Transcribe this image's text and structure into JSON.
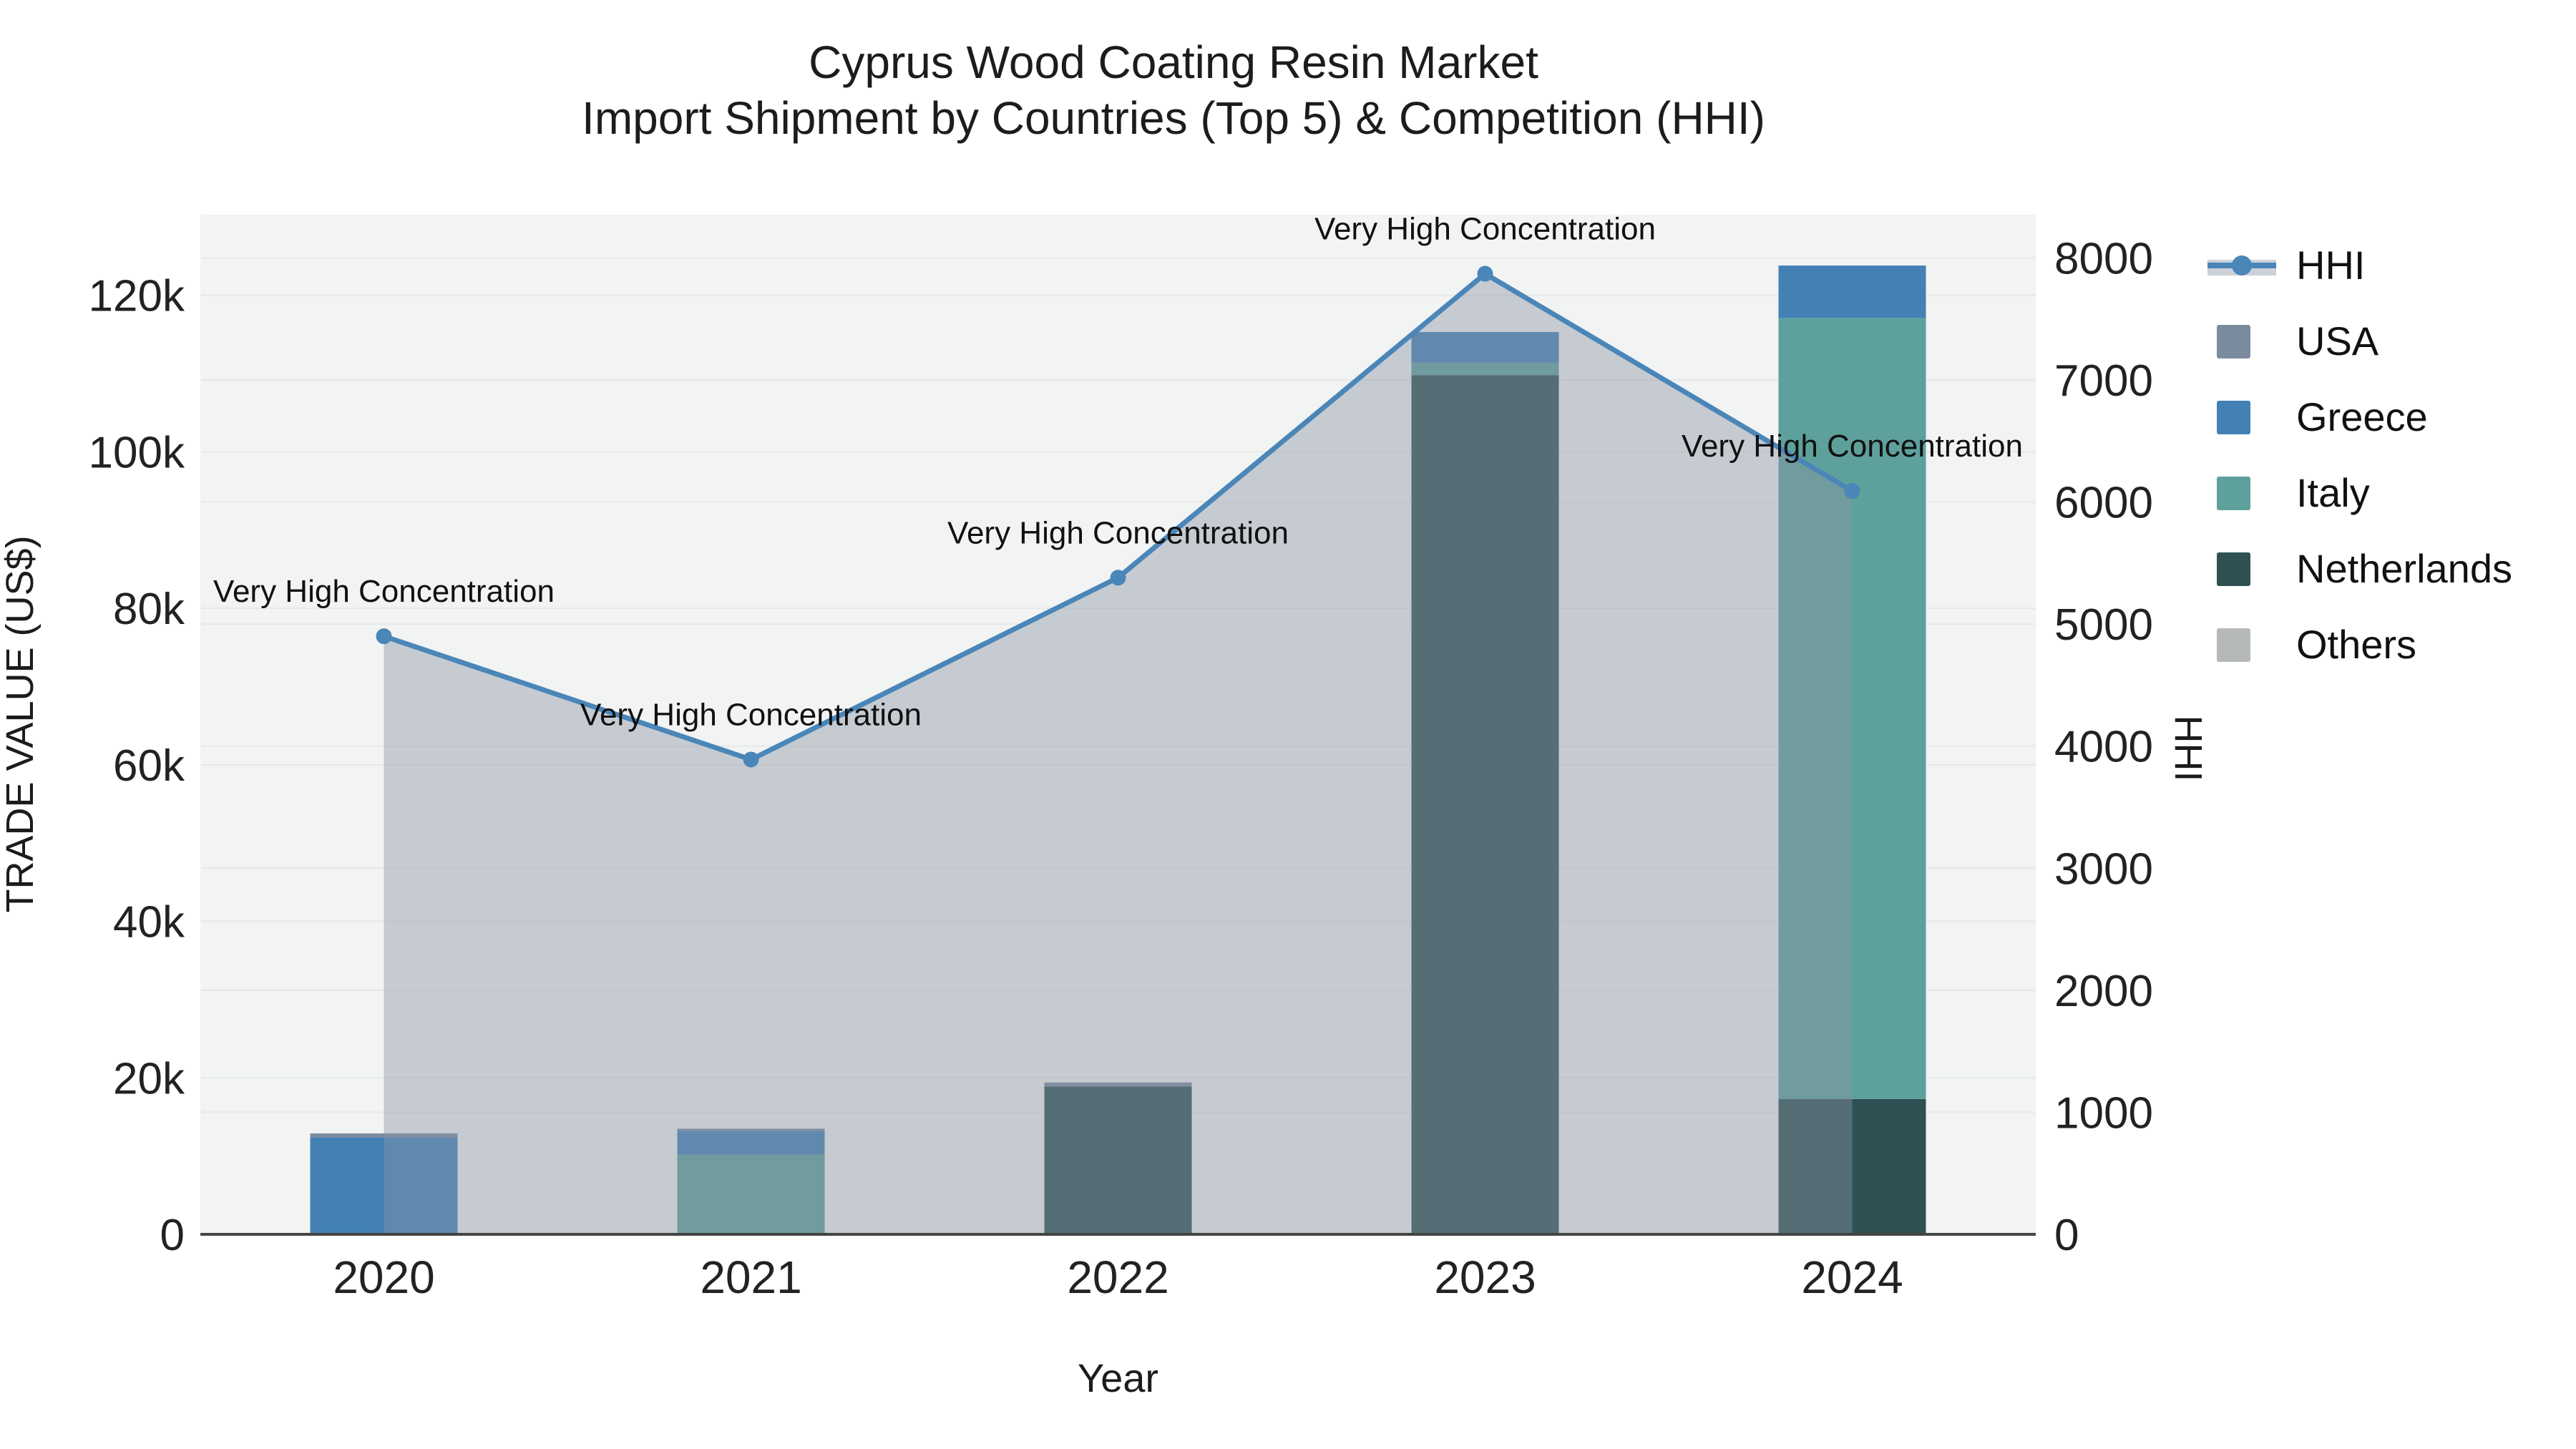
{
  "header": {
    "title_line1": "Cyprus Wood Coating Resin Market",
    "title_line2": "Import Shipment by Countries (Top 5) & Competition (HHI)"
  },
  "legend": {
    "items": [
      {
        "label": "HHI",
        "type": "line",
        "color": "#4a86b8"
      },
      {
        "label": "USA",
        "type": "square",
        "color": "#7b8b9e"
      },
      {
        "label": "Greece",
        "type": "square",
        "color": "#4381b4"
      },
      {
        "label": "Italy",
        "type": "square",
        "color": "#5ea09c"
      },
      {
        "label": "Netherlands",
        "type": "square",
        "color": "#2f5154"
      },
      {
        "label": "Others",
        "type": "square",
        "color": "#b5bab8"
      }
    ]
  },
  "chart_data": {
    "type": "bar+line",
    "title": "Cyprus Wood Coating Resin Market — Import Shipment by Countries (Top 5) & Competition (HHI)",
    "categories": [
      "2020",
      "2021",
      "2022",
      "2023",
      "2024"
    ],
    "bar_series": [
      {
        "name": "USA",
        "color": "#7b8b9e",
        "values": [
          500,
          300,
          500,
          0,
          0
        ]
      },
      {
        "name": "Greece",
        "color": "#4381b4",
        "values": [
          12400,
          3000,
          0,
          3900,
          6700
        ]
      },
      {
        "name": "Italy",
        "color": "#5ea09c",
        "values": [
          0,
          10200,
          0,
          1600,
          99800
        ]
      },
      {
        "name": "Netherlands",
        "color": "#2f5154",
        "values": [
          0,
          0,
          18900,
          109800,
          17300
        ]
      },
      {
        "name": "Others",
        "color": "#b5bab8",
        "values": [
          0,
          0,
          0,
          0,
          0
        ]
      }
    ],
    "bar_totals": [
      12900,
      13500,
      19400,
      115300,
      123800
    ],
    "stack_order_bottom_to_top": [
      "Others",
      "Netherlands",
      "Italy",
      "Greece",
      "USA"
    ],
    "line_series": {
      "name": "HHI",
      "color": "#4a86b8",
      "fill_color": "#8b94a5",
      "fill_opacity": 0.42,
      "values": [
        4900,
        3890,
        5380,
        7870,
        6090
      ]
    },
    "annotations": [
      "Very High Concentration",
      "Very High Concentration",
      "Very High Concentration",
      "Very High Concentration",
      "Very High Concentration"
    ],
    "xlabel": "Year",
    "ylabel_left": "TRADE VALUE (US$)",
    "ylabel_right": "HHI",
    "yticks_left": {
      "values": [
        0,
        20000,
        40000,
        60000,
        80000,
        100000,
        120000
      ],
      "labels": [
        "0",
        "20k",
        "40k",
        "60k",
        "80k",
        "100k",
        "120k"
      ]
    },
    "yticks_right": {
      "values": [
        0,
        1000,
        2000,
        3000,
        4000,
        5000,
        6000,
        7000,
        8000
      ],
      "labels": [
        "0",
        "1000",
        "2000",
        "3000",
        "4000",
        "5000",
        "6000",
        "7000",
        "8000"
      ]
    },
    "ylim_left": [
      0,
      130300
    ],
    "ylim_right": [
      0,
      8354
    ],
    "grid": true,
    "legend_position": "right",
    "plot_bg": "#f2f3f3",
    "grid_color": "#e7e9e9",
    "axis_line_color": "#444444",
    "tick_color": "#222222"
  }
}
